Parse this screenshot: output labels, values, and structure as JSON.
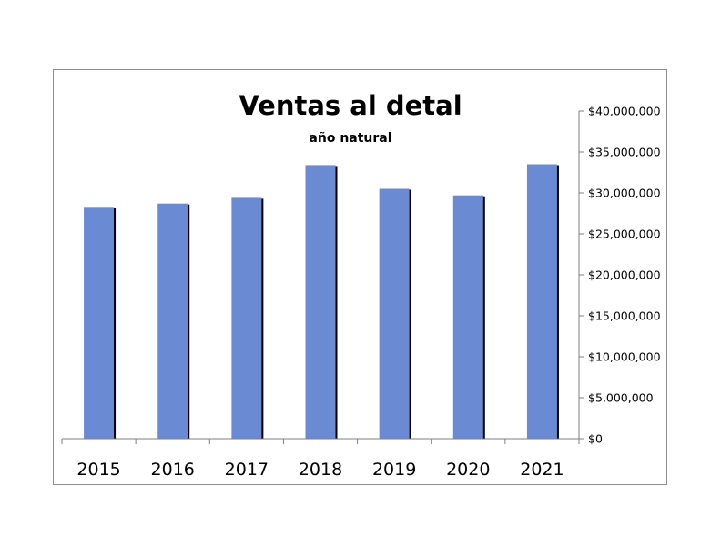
{
  "chart_data": {
    "type": "bar",
    "title": "Ventas al detal",
    "subtitle": "año natural",
    "categories": [
      "2015",
      "2016",
      "2017",
      "2018",
      "2019",
      "2020",
      "2021"
    ],
    "values": [
      28300000,
      28700000,
      29400000,
      33400000,
      30500000,
      29700000,
      33500000
    ],
    "ylim": [
      0,
      40000000
    ],
    "yticks": [
      0,
      5000000,
      10000000,
      15000000,
      20000000,
      25000000,
      30000000,
      35000000,
      40000000
    ],
    "ytick_labels": [
      "$0",
      "$5,000,000",
      "$10,000,000",
      "$15,000,000",
      "$20,000,000",
      "$25,000,000",
      "$30,000,000",
      "$35,000,000",
      "$40,000,000"
    ],
    "yaxis_position": "right",
    "grid": false,
    "legend": "none",
    "bar_color": "#6a8ad4",
    "bar_shadow_color": "#000000"
  }
}
